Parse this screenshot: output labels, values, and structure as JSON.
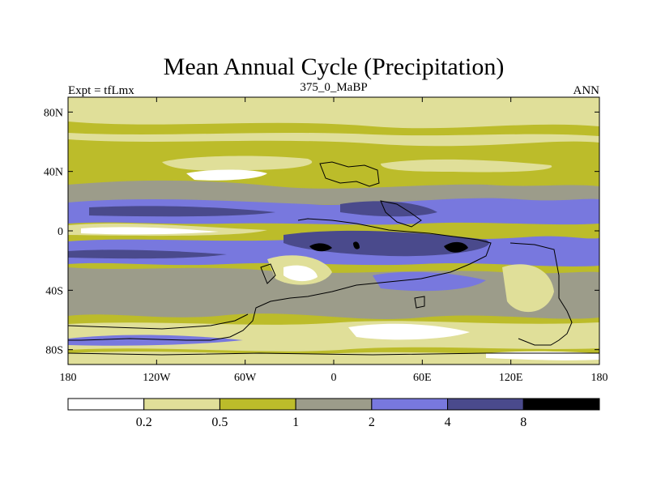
{
  "chart_data": {
    "type": "heatmap",
    "title": "Mean Annual Cycle (Precipitation)",
    "left_label": "Expt = tfLmx",
    "center_label": "375_0_MaBP",
    "right_label": "ANN",
    "x_axis": {
      "ticks": [
        -180,
        -120,
        -60,
        0,
        60,
        120,
        180
      ],
      "tick_labels": [
        "180",
        "120W",
        "60W",
        "0",
        "60E",
        "120E",
        "180"
      ],
      "range": [
        -180,
        180
      ]
    },
    "y_axis": {
      "ticks": [
        80,
        40,
        0,
        -40,
        -80
      ],
      "tick_labels": [
        "80N",
        "40N",
        "0",
        "40S",
        "80S"
      ],
      "range": [
        -90,
        90
      ]
    },
    "colorbar": {
      "levels": [
        "0.2",
        "0.5",
        "1",
        "2",
        "4",
        "8"
      ],
      "colors": [
        "#ffffff",
        "#e0df99",
        "#bcbc2a",
        "#9c9c8a",
        "#7878de",
        "#4a4a8c",
        "#000000"
      ]
    },
    "colors": {
      "ocean_bg": "#bcbc2a",
      "coast": "#000000"
    }
  }
}
